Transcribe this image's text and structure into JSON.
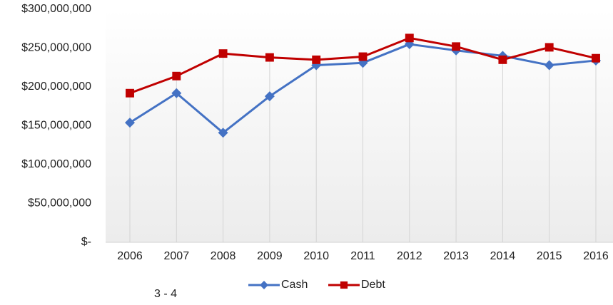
{
  "chart_data": {
    "type": "line",
    "categories": [
      "2006",
      "2007",
      "2008",
      "2009",
      "2010",
      "2011",
      "2012",
      "2013",
      "2014",
      "2015",
      "2016"
    ],
    "series": [
      {
        "name": "Cash",
        "color": "#4472c4",
        "marker": "diamond",
        "values": [
          154000000,
          192000000,
          141000000,
          188000000,
          228000000,
          231000000,
          255000000,
          247000000,
          240000000,
          228000000,
          234000000
        ]
      },
      {
        "name": "Debt",
        "color": "#c00000",
        "marker": "square",
        "values": [
          192000000,
          214000000,
          243000000,
          238000000,
          235000000,
          239000000,
          263000000,
          252000000,
          235000000,
          251000000,
          237000000
        ]
      }
    ],
    "ylim": [
      0,
      300000000
    ],
    "yticks": [
      {
        "value": 0,
        "label": "$-"
      },
      {
        "value": 50000000,
        "label": "$50,000,000"
      },
      {
        "value": 100000000,
        "label": "$100,000,000"
      },
      {
        "value": 150000000,
        "label": "$150,000,000"
      },
      {
        "value": 200000000,
        "label": "$200,000,000"
      },
      {
        "value": 250000000,
        "label": "$250,000,000"
      },
      {
        "value": 300000000,
        "label": "$300,000,000"
      }
    ],
    "drop_lines": true,
    "legend": "bottom",
    "annotation": "3 - 4"
  }
}
